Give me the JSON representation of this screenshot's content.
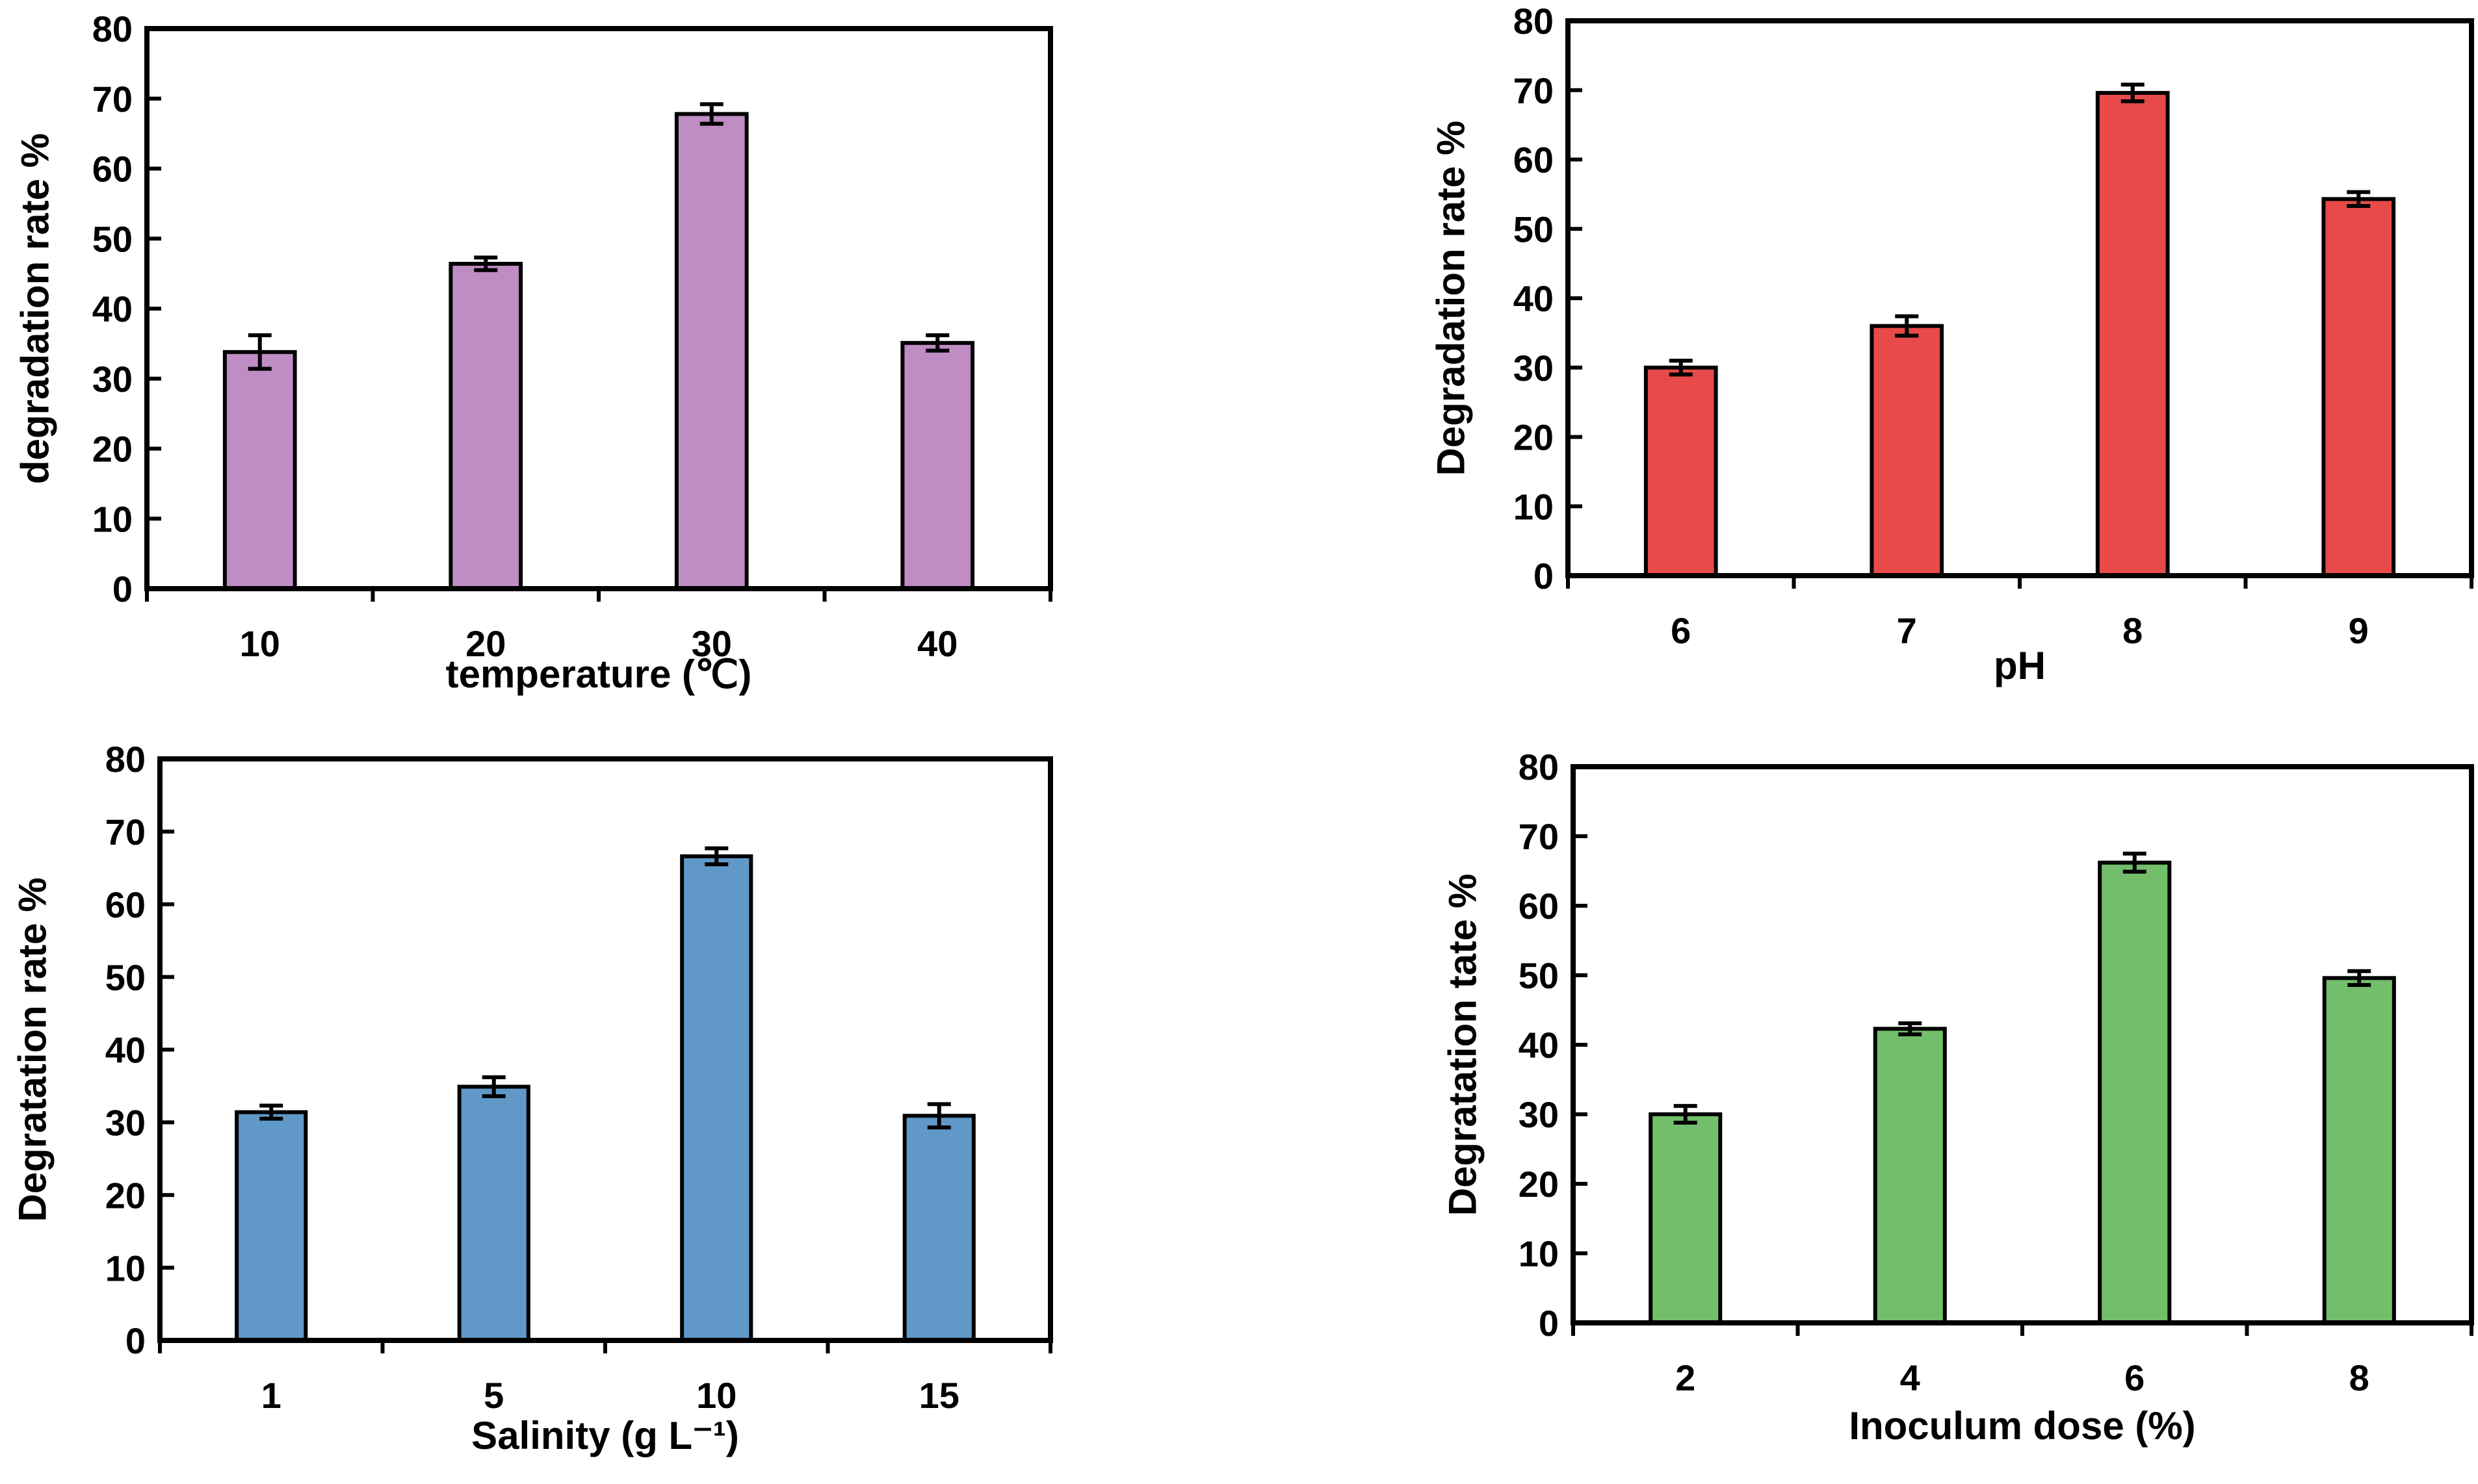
{
  "figure": {
    "panel_count": 4
  },
  "chart_data": [
    {
      "type": "bar",
      "title": "",
      "xlabel": "temperature (℃)",
      "ylabel": "degradation rate %",
      "categories": [
        "10",
        "20",
        "30",
        "40"
      ],
      "values": [
        33.8,
        46.4,
        67.8,
        35.1
      ],
      "errors": [
        2.4,
        0.9,
        1.4,
        1.1
      ],
      "ylim": [
        0,
        80
      ],
      "yticks": [
        "0",
        "10",
        "20",
        "30",
        "40",
        "50",
        "60",
        "70",
        "80"
      ],
      "color": "#bf8cc4",
      "grid": false,
      "legend": "none"
    },
    {
      "type": "bar",
      "title": "",
      "xlabel": "pH",
      "ylabel": "Degradation rate %",
      "categories": [
        "6",
        "7",
        "8",
        "9"
      ],
      "values": [
        30.0,
        36.0,
        69.6,
        54.3
      ],
      "errors": [
        1.0,
        1.4,
        1.2,
        1.0
      ],
      "ylim": [
        0,
        80
      ],
      "yticks": [
        "0",
        "10",
        "20",
        "30",
        "40",
        "50",
        "60",
        "70",
        "80"
      ],
      "color": "#e84a4a",
      "grid": false,
      "legend": "none"
    },
    {
      "type": "bar",
      "title": "",
      "xlabel": "Salinity (g L⁻¹)",
      "ylabel": "Degratation rate %",
      "categories": [
        "1",
        "5",
        "10",
        "15"
      ],
      "values": [
        31.4,
        34.9,
        66.6,
        30.9
      ],
      "errors": [
        0.9,
        1.3,
        1.1,
        1.6
      ],
      "ylim": [
        0,
        80
      ],
      "yticks": [
        "0",
        "10",
        "20",
        "30",
        "40",
        "50",
        "60",
        "70",
        "80"
      ],
      "color": "#6099c8",
      "grid": false,
      "legend": "none"
    },
    {
      "type": "bar",
      "title": "",
      "xlabel": "Inoculum dose (%)",
      "ylabel": "Degratation tate %",
      "categories": [
        "2",
        "4",
        "6",
        "8"
      ],
      "values": [
        30.0,
        42.3,
        66.2,
        49.6
      ],
      "errors": [
        1.2,
        0.8,
        1.3,
        1.0
      ],
      "ylim": [
        0,
        80
      ],
      "yticks": [
        "0",
        "10",
        "20",
        "30",
        "40",
        "50",
        "60",
        "70",
        "80"
      ],
      "color": "#73be6b",
      "grid": false,
      "legend": "none"
    }
  ]
}
